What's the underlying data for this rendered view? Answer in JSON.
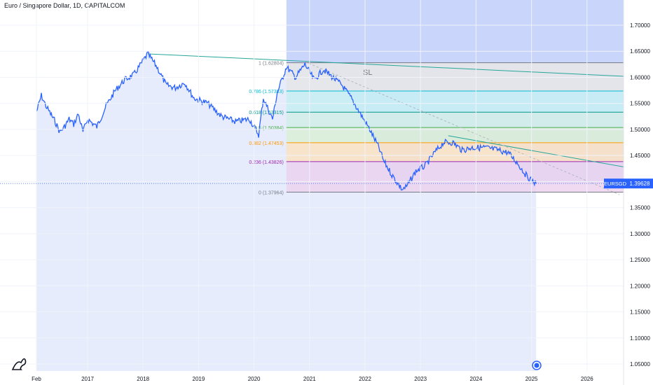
{
  "header": {
    "title": "Euro / Singapore Dollar, 1D, CAPITALCOM"
  },
  "colors": {
    "price_line": "#2962ff",
    "area_fill": "#dfe6fb",
    "trendline": "#26a69a",
    "highlight_band": "#c9d5fb",
    "grid": "#f0f3fa"
  },
  "icons": [
    "tradingview-logo-icon",
    "replay-circle-icon"
  ],
  "chart_data": {
    "type": "line",
    "symbol": "EURSGD",
    "last_price": "1.39628",
    "x_ticks": [
      "Feb",
      "2017",
      "2018",
      "2019",
      "2020",
      "2021",
      "2022",
      "2023",
      "2024",
      "2025",
      "2026"
    ],
    "y_ticks": [
      "1.70000",
      "1.65000",
      "1.60000",
      "1.55000",
      "1.50000",
      "1.45000",
      "1.40000",
      "1.35000",
      "1.30000",
      "1.25000",
      "1.20000",
      "1.15000",
      "1.10000",
      "1.05000"
    ],
    "ylim": [
      1.04,
      1.72
    ],
    "series": [
      {
        "values": [
          [
            "2016-02",
            1.535
          ],
          [
            "2016-03",
            1.565
          ],
          [
            "2016-04",
            1.545
          ],
          [
            "2016-05",
            1.53
          ],
          [
            "2016-06",
            1.515
          ],
          [
            "2016-07",
            1.495
          ],
          [
            "2016-08",
            1.505
          ],
          [
            "2016-09",
            1.52
          ],
          [
            "2016-10",
            1.51
          ],
          [
            "2016-11",
            1.53
          ],
          [
            "2016-12",
            1.495
          ],
          [
            "2017-01",
            1.52
          ],
          [
            "2017-03",
            1.505
          ],
          [
            "2017-05",
            1.545
          ],
          [
            "2017-07",
            1.575
          ],
          [
            "2017-09",
            1.595
          ],
          [
            "2017-11",
            1.605
          ],
          [
            "2018-02",
            1.645
          ],
          [
            "2018-04",
            1.62
          ],
          [
            "2018-06",
            1.585
          ],
          [
            "2018-08",
            1.58
          ],
          [
            "2018-10",
            1.59
          ],
          [
            "2018-12",
            1.56
          ],
          [
            "2019-03",
            1.55
          ],
          [
            "2019-06",
            1.525
          ],
          [
            "2019-09",
            1.515
          ],
          [
            "2019-12",
            1.52
          ],
          [
            "2020-02",
            1.49
          ],
          [
            "2020-03",
            1.56
          ],
          [
            "2020-05",
            1.52
          ],
          [
            "2020-06",
            1.57
          ],
          [
            "2020-08",
            1.62
          ],
          [
            "2020-10",
            1.6
          ],
          [
            "2020-12",
            1.625
          ],
          [
            "2021-02",
            1.595
          ],
          [
            "2021-04",
            1.615
          ],
          [
            "2021-06",
            1.6
          ],
          [
            "2021-08",
            1.585
          ],
          [
            "2021-10",
            1.56
          ],
          [
            "2021-12",
            1.53
          ],
          [
            "2022-02",
            1.5
          ],
          [
            "2022-04",
            1.465
          ],
          [
            "2022-05",
            1.44
          ],
          [
            "2022-07",
            1.41
          ],
          [
            "2022-09",
            1.385
          ],
          [
            "2022-10",
            1.39
          ],
          [
            "2022-12",
            1.42
          ],
          [
            "2023-02",
            1.43
          ],
          [
            "2023-04",
            1.455
          ],
          [
            "2023-06",
            1.475
          ],
          [
            "2023-08",
            1.475
          ],
          [
            "2023-10",
            1.46
          ],
          [
            "2023-12",
            1.465
          ],
          [
            "2024-03",
            1.465
          ],
          [
            "2024-06",
            1.46
          ],
          [
            "2024-08",
            1.455
          ],
          [
            "2024-10",
            1.435
          ],
          [
            "2024-12",
            1.41
          ],
          [
            "2025-02",
            1.396
          ]
        ]
      }
    ],
    "fibonacci": {
      "levels": [
        {
          "label": "1 (1.62804)",
          "price": 1.62804,
          "color": "#787b86"
        },
        {
          "label": "0.786 (1.57383)",
          "price": 1.57383,
          "color": "#00bcd4"
        },
        {
          "label": "0.618 (1.53315)",
          "price": 1.53315,
          "color": "#009688"
        },
        {
          "label": "0.5 (1.50384)",
          "price": 1.50384,
          "color": "#4caf50"
        },
        {
          "label": "0.382 (1.47453)",
          "price": 1.47453,
          "color": "#ff9800"
        },
        {
          "label": "0.236 (1.43826)",
          "price": 1.43826,
          "color": "#9c27b0"
        },
        {
          "label": "0 (1.37964)",
          "price": 1.37964,
          "color": "#787b86"
        }
      ],
      "bands": [
        "#e7e7e7",
        "#c8f0f3",
        "#d4f0e8",
        "#dcf0d6",
        "#fde3c2",
        "#ecd3ef"
      ],
      "range_start": "2020-08",
      "annotation": "SL"
    },
    "trendlines": [
      {
        "from": [
          "2018-02",
          1.645
        ],
        "to": [
          "2026-09",
          1.602
        ],
        "color": "#26a69a"
      },
      {
        "from": [
          "2023-07",
          1.488
        ],
        "to": [
          "2026-09",
          1.428
        ],
        "color": "#26a69a"
      },
      {
        "from": [
          "2020-12",
          1.63
        ],
        "to": [
          "2026-08",
          1.375
        ],
        "color": "#b2b5be",
        "dashed": true
      }
    ],
    "highlight_range": {
      "start": "2020-08",
      "end": "2026-10"
    }
  }
}
